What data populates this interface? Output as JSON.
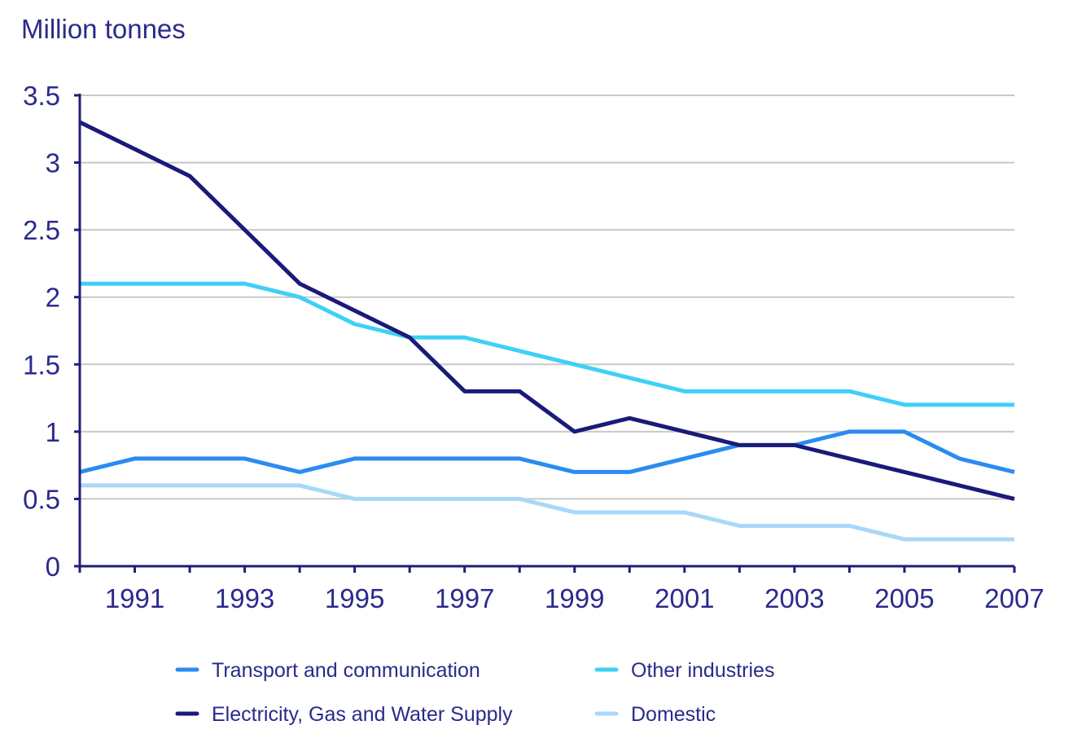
{
  "chart_data": {
    "type": "line",
    "title": "",
    "ylabel": "Million tonnes",
    "xlabel": "",
    "x": [
      1990,
      1991,
      1992,
      1993,
      1994,
      1995,
      1996,
      1997,
      1998,
      1999,
      2000,
      2001,
      2002,
      2003,
      2004,
      2005,
      2006,
      2007
    ],
    "x_ticks": [
      "1991",
      "1993",
      "1995",
      "1997",
      "1999",
      "2001",
      "2003",
      "2005",
      "2007"
    ],
    "y_ticks": [
      "0",
      "0.5",
      "1",
      "1.5",
      "2",
      "2.5",
      "3",
      "3.5"
    ],
    "ylim": [
      0,
      3.5
    ],
    "grid": true,
    "legend_position": "bottom",
    "series": [
      {
        "name": "Transport and communication",
        "color": "#2a8cf0",
        "values": [
          0.7,
          0.8,
          0.8,
          0.8,
          0.7,
          0.8,
          0.8,
          0.8,
          0.8,
          0.7,
          0.7,
          0.8,
          0.9,
          0.9,
          1.0,
          1.0,
          0.8,
          0.7
        ]
      },
      {
        "name": "Other industries",
        "color": "#3fd0f5",
        "values": [
          2.1,
          2.1,
          2.1,
          2.1,
          2.0,
          1.8,
          1.7,
          1.7,
          1.6,
          1.5,
          1.4,
          1.3,
          1.3,
          1.3,
          1.3,
          1.2,
          1.2,
          1.2
        ]
      },
      {
        "name": "Electricity, Gas and Water Supply",
        "color": "#1a1a7a",
        "values": [
          3.3,
          3.1,
          2.9,
          2.5,
          2.1,
          1.9,
          1.7,
          1.3,
          1.3,
          1.0,
          1.1,
          1.0,
          0.9,
          0.9,
          0.8,
          0.7,
          0.6,
          0.5
        ]
      },
      {
        "name": "Domestic",
        "color": "#a8d8fa",
        "values": [
          0.6,
          0.6,
          0.6,
          0.6,
          0.6,
          0.5,
          0.5,
          0.5,
          0.5,
          0.4,
          0.4,
          0.4,
          0.3,
          0.3,
          0.3,
          0.2,
          0.2,
          0.2
        ]
      }
    ]
  }
}
